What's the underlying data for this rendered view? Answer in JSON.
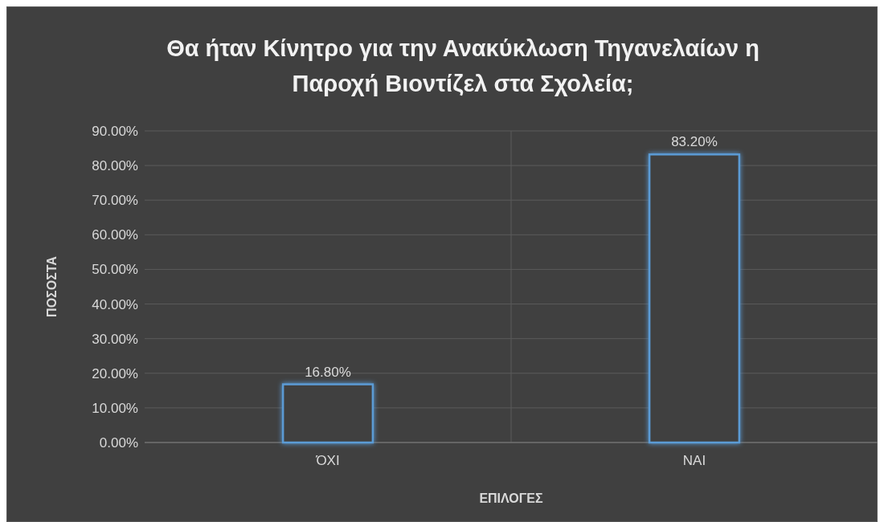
{
  "chart_data": {
    "type": "bar",
    "title": "Θα ήταν Κίνητρο για την Ανακύκλωση Τηγανελαίων η Παροχή Βιοντίζελ στα Σχολεία;",
    "xlabel": "ΕΠΙΛΟΓΕΣ",
    "ylabel": "ΠΟΣΟΣΤΑ",
    "categories": [
      "ΌΧΙ",
      "ΝΑΙ"
    ],
    "values": [
      16.8,
      83.2
    ],
    "value_labels": [
      "16.80%",
      "83.20%"
    ],
    "color": "#5b9bd5",
    "ylim": [
      0,
      90
    ],
    "yticks": [
      {
        "value": 0,
        "label": "0.00%"
      },
      {
        "value": 10,
        "label": "10.00%"
      },
      {
        "value": 20,
        "label": "20.00%"
      },
      {
        "value": 30,
        "label": "30.00%"
      },
      {
        "value": 40,
        "label": "40.00%"
      },
      {
        "value": 50,
        "label": "50.00%"
      },
      {
        "value": 60,
        "label": "60.00%"
      },
      {
        "value": 70,
        "label": "70.00%"
      },
      {
        "value": 80,
        "label": "80.00%"
      },
      {
        "value": 90,
        "label": "90.00%"
      }
    ],
    "grid": true
  }
}
